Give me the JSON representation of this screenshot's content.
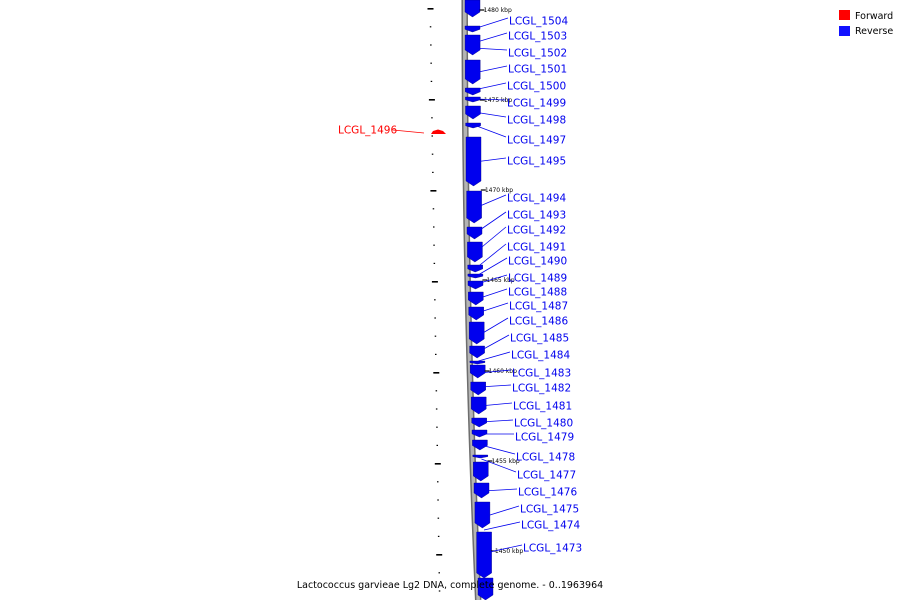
{
  "caption": "Lactococcus garvieae Lg2 DNA, complete genome. - 0..1963964",
  "colors": {
    "forward": "#ff0000",
    "reverse": "#0000ee",
    "backbone": "#b4b4b4"
  },
  "legend": [
    {
      "label": "Forward",
      "color": "#ff0000"
    },
    {
      "label": "Reverse",
      "color": "#1111ff"
    }
  ],
  "kbp_labels": [
    "1480 kbp",
    "1475 kbp",
    "1470 kbp",
    "1465 kbp",
    "1460 kbp",
    "1455 kbp",
    "1450 kbp"
  ],
  "genes": [
    {
      "label": "LCGL_1504",
      "strand": "reverse"
    },
    {
      "label": "LCGL_1503",
      "strand": "reverse"
    },
    {
      "label": "LCGL_1502",
      "strand": "reverse"
    },
    {
      "label": "LCGL_1501",
      "strand": "reverse"
    },
    {
      "label": "LCGL_1500",
      "strand": "reverse"
    },
    {
      "label": "LCGL_1499",
      "strand": "reverse"
    },
    {
      "label": "LCGL_1498",
      "strand": "reverse"
    },
    {
      "label": "LCGL_1497",
      "strand": "reverse"
    },
    {
      "label": "LCGL_1496",
      "strand": "forward"
    },
    {
      "label": "LCGL_1495",
      "strand": "reverse"
    },
    {
      "label": "LCGL_1494",
      "strand": "reverse"
    },
    {
      "label": "LCGL_1493",
      "strand": "reverse"
    },
    {
      "label": "LCGL_1492",
      "strand": "reverse"
    },
    {
      "label": "LCGL_1491",
      "strand": "reverse"
    },
    {
      "label": "LCGL_1490",
      "strand": "reverse"
    },
    {
      "label": "LCGL_1489",
      "strand": "reverse"
    },
    {
      "label": "LCGL_1488",
      "strand": "reverse"
    },
    {
      "label": "LCGL_1487",
      "strand": "reverse"
    },
    {
      "label": "LCGL_1486",
      "strand": "reverse"
    },
    {
      "label": "LCGL_1485",
      "strand": "reverse"
    },
    {
      "label": "LCGL_1484",
      "strand": "reverse"
    },
    {
      "label": "LCGL_1483",
      "strand": "reverse"
    },
    {
      "label": "LCGL_1482",
      "strand": "reverse"
    },
    {
      "label": "LCGL_1481",
      "strand": "reverse"
    },
    {
      "label": "LCGL_1480",
      "strand": "reverse"
    },
    {
      "label": "LCGL_1479",
      "strand": "reverse"
    },
    {
      "label": "LCGL_1478",
      "strand": "reverse"
    },
    {
      "label": "LCGL_1477",
      "strand": "reverse"
    },
    {
      "label": "LCGL_1476",
      "strand": "reverse"
    },
    {
      "label": "LCGL_1475",
      "strand": "reverse"
    },
    {
      "label": "LCGL_1474",
      "strand": "reverse"
    },
    {
      "label": "LCGL_1473",
      "strand": "reverse"
    }
  ]
}
